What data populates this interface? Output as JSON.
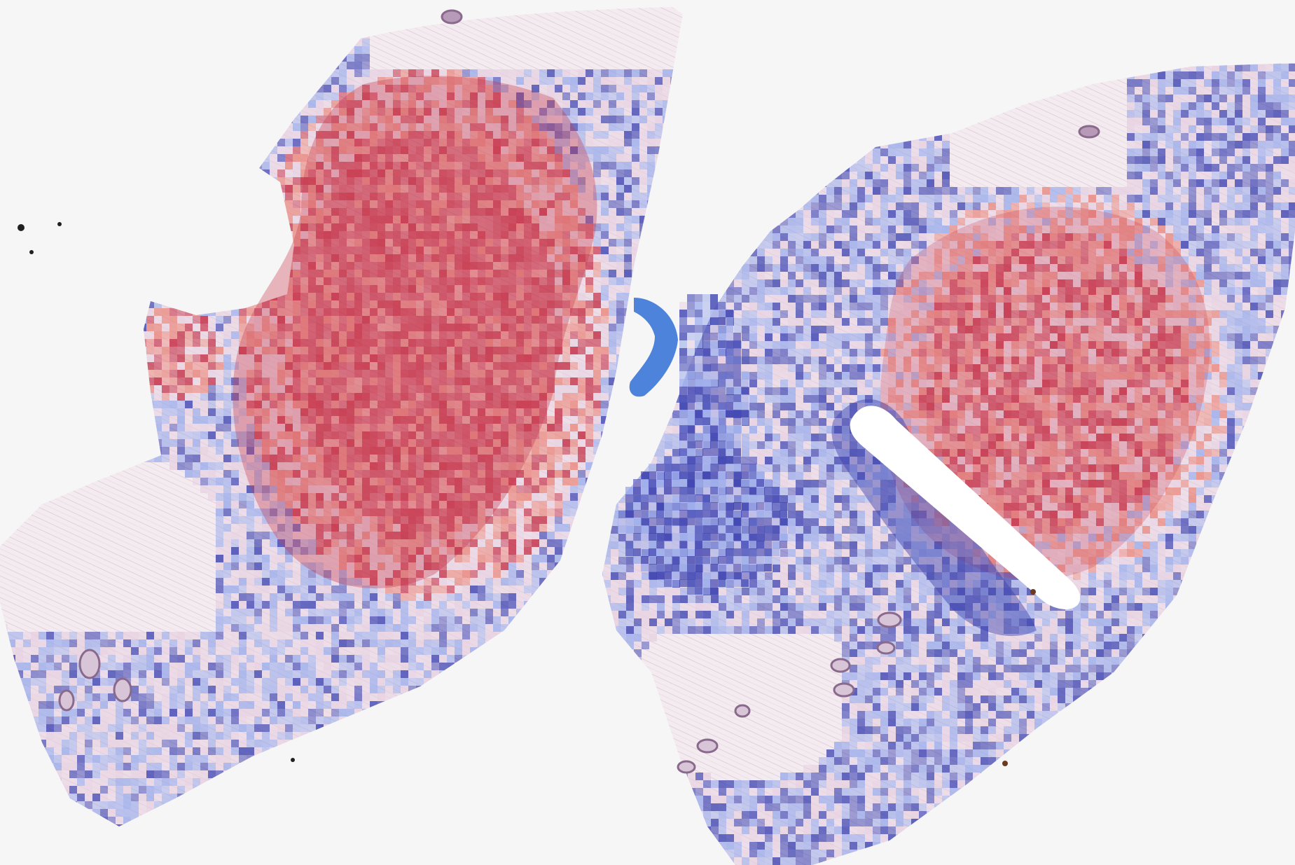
{
  "viewer": {
    "background": "#f6f6f6"
  },
  "heatmap": {
    "colormap": "coolwarm",
    "high_color": "#c0203a",
    "mid_high_color": "#e8837a",
    "mid_color": "#e6cfe0",
    "mid_low_color": "#9aaaea",
    "low_color": "#3a40b0"
  },
  "tissue": {
    "stroma_color": "#f1e8ee",
    "fiber_color": "#ddc6d4",
    "hair_follicle_color": "#8a6a8c",
    "debris_color": "#202020",
    "specimens": [
      {
        "id": "left-specimen",
        "core": "high"
      },
      {
        "id": "right-specimen",
        "core": "high",
        "lumen": "empty"
      }
    ]
  },
  "artifact": {
    "name": "pen-mark",
    "color": "#2f6fd6"
  }
}
